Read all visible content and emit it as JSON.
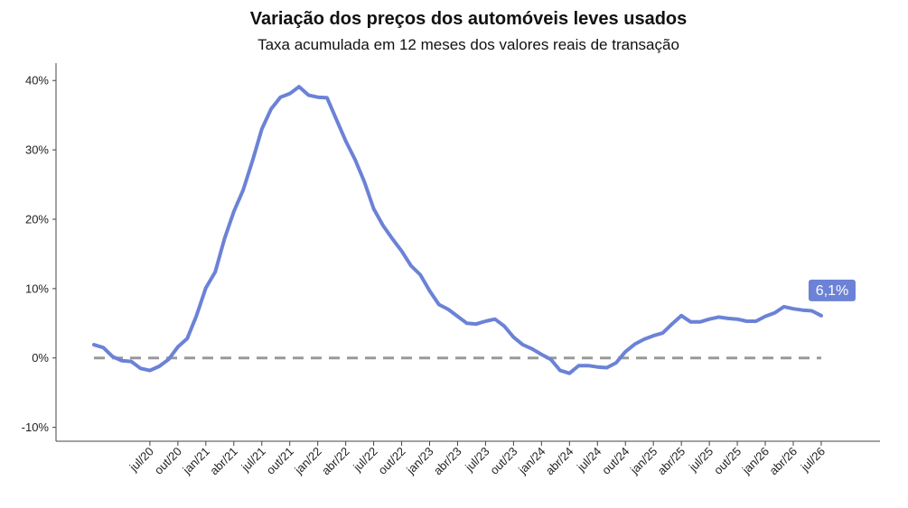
{
  "chart_data": {
    "type": "line",
    "title": "Variação dos preços dos automóveis leves usados",
    "subtitle": "Taxa acumulada em 12 meses dos valores reais de transação",
    "xlabel": "",
    "ylabel": "",
    "ylim": [
      -12,
      42.5
    ],
    "yticks": [
      -10,
      0,
      10,
      20,
      30,
      40
    ],
    "ytick_labels": [
      "-10%",
      "0%",
      "10%",
      "20%",
      "30%",
      "40%"
    ],
    "xtick_labels": [
      "jul/20",
      "out/20",
      "jan/21",
      "abr/21",
      "jul/21",
      "out/21",
      "jan/22",
      "abr/22",
      "jul/22",
      "out/22",
      "jan/23",
      "abr/23",
      "jul/23",
      "out/23",
      "jan/24",
      "abr/24",
      "jul/24",
      "out/24",
      "jan/25",
      "abr/25",
      "jul/25",
      "out/25",
      "jan/26",
      "abr/26",
      "jul/26"
    ],
    "x_start": "jan/20",
    "x": [
      "jan/20",
      "fev/20",
      "mar/20",
      "abr/20",
      "mai/20",
      "jun/20",
      "jul/20",
      "ago/20",
      "set/20",
      "out/20",
      "nov/20",
      "dez/20",
      "jan/21",
      "fev/21",
      "mar/21",
      "abr/21",
      "mai/21",
      "jun/21",
      "jul/21",
      "ago/21",
      "set/21",
      "out/21",
      "nov/21",
      "dez/21",
      "jan/22",
      "fev/22",
      "mar/22",
      "abr/22",
      "mai/22",
      "jun/22",
      "jul/22",
      "ago/22",
      "set/22",
      "out/22",
      "nov/22",
      "dez/22",
      "jan/23",
      "fev/23",
      "mar/23",
      "abr/23",
      "mai/23",
      "jun/23",
      "jul/23",
      "ago/23",
      "set/23",
      "out/23",
      "nov/23",
      "dez/23",
      "jan/24",
      "fev/24",
      "mar/24",
      "abr/24",
      "mai/24",
      "jun/24",
      "jul/24",
      "ago/24",
      "set/24",
      "out/24",
      "nov/24",
      "dez/24",
      "jan/25",
      "fev/25",
      "mar/25",
      "abr/25",
      "mai/25",
      "jun/25",
      "jul/25",
      "ago/25",
      "set/25",
      "out/25",
      "nov/25",
      "dez/25",
      "jan/26",
      "fev/26",
      "mar/26",
      "abr/26",
      "mai/26",
      "jun/26",
      "jul/26"
    ],
    "series": [
      {
        "name": "",
        "color": "#6b82d6",
        "values": [
          1.9,
          1.5,
          0.2,
          -0.4,
          -0.5,
          -1.5,
          -1.8,
          -1.2,
          -0.2,
          1.6,
          2.8,
          6.1,
          10.1,
          12.4,
          17.2,
          21.1,
          24.2,
          28.4,
          33.0,
          35.9,
          37.6,
          38.1,
          39.1,
          37.9,
          37.6,
          37.5,
          34.4,
          31.3,
          28.6,
          25.4,
          21.5,
          19.1,
          17.2,
          15.4,
          13.3,
          12.0,
          9.7,
          7.7,
          7.0,
          6.0,
          5.0,
          4.9,
          5.3,
          5.6,
          4.6,
          3.0,
          1.9,
          1.3,
          0.5,
          -0.2,
          -1.8,
          -2.2,
          -1.1,
          -1.1,
          -1.3,
          -1.4,
          -0.7,
          0.9,
          2.0,
          2.7,
          3.2,
          3.6,
          4.9,
          6.1,
          5.2,
          5.2,
          5.6,
          5.9,
          5.7,
          5.6,
          5.3,
          5.3,
          6.0,
          6.5,
          7.4,
          7.1,
          6.9,
          6.8,
          6.1
        ]
      }
    ],
    "reference_line": {
      "y": 0,
      "style": "dashed",
      "color": "#999999"
    },
    "end_label": {
      "text": "6,1%",
      "color": "#6b82d6"
    },
    "grid": false,
    "legend": "none"
  }
}
